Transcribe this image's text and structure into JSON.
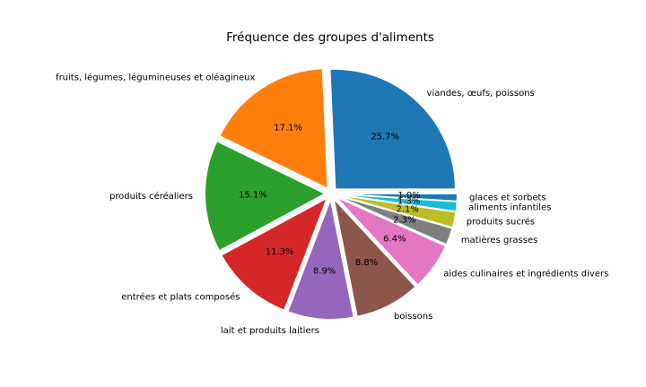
{
  "chart_data": {
    "type": "pie",
    "title": "Fréquence des groupes d'aliments",
    "slices": [
      {
        "label": "viandes, œufs, poissons",
        "value": 25.7,
        "pct_label": "25.7%",
        "color": "#1f77b4"
      },
      {
        "label": "fruits, légumes, légumineuses et oléagineux",
        "value": 17.1,
        "pct_label": "17.1%",
        "color": "#ff7f0e"
      },
      {
        "label": "produits céréaliers",
        "value": 15.1,
        "pct_label": "15.1%",
        "color": "#2ca02c"
      },
      {
        "label": "entrées et plats composés",
        "value": 11.3,
        "pct_label": "11.3%",
        "color": "#d62728"
      },
      {
        "label": "lait et produits laitiers",
        "value": 8.9,
        "pct_label": "8.9%",
        "color": "#9467bd"
      },
      {
        "label": "boissons",
        "value": 8.8,
        "pct_label": "8.8%",
        "color": "#8c564b"
      },
      {
        "label": "aides culinaires et ingrédients divers",
        "value": 6.4,
        "pct_label": "6.4%",
        "color": "#e377c2"
      },
      {
        "label": "matières grasses",
        "value": 2.3,
        "pct_label": "2.3%",
        "color": "#7f7f7f"
      },
      {
        "label": "produits sucrés",
        "value": 2.1,
        "pct_label": "2.1%",
        "color": "#bcbd22"
      },
      {
        "label": "aliments infantiles",
        "value": 1.3,
        "pct_label": "1.3%",
        "color": "#17becf"
      },
      {
        "label": "glaces et sorbets",
        "value": 1.0,
        "pct_label": "1.0%",
        "color": "#1f77b4"
      }
    ],
    "start_angle": 0,
    "direction": "counterclockwise",
    "exploded": true,
    "legend": "none"
  }
}
